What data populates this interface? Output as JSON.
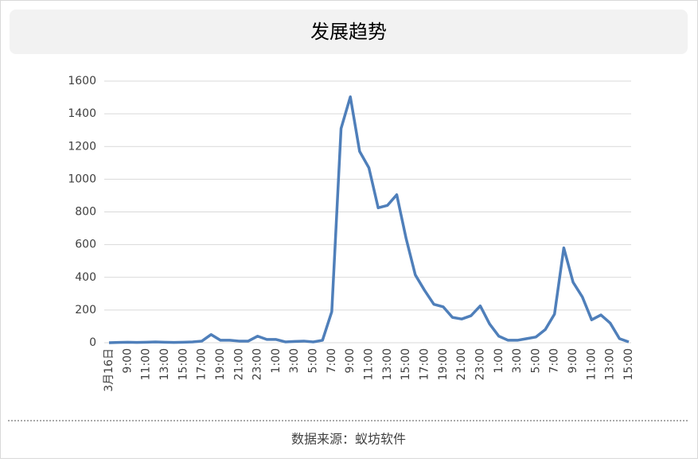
{
  "chart_data": {
    "type": "line",
    "title": "发展趋势",
    "source": "数据来源：蚁坊软件",
    "categories": [
      "3月16日",
      null,
      "9:00",
      null,
      "11:00",
      null,
      "13:00",
      null,
      "15:00",
      null,
      "17:00",
      null,
      "19:00",
      null,
      "21:00",
      null,
      "23:00",
      null,
      "1:00",
      null,
      "3:00",
      null,
      "5:00",
      null,
      "7:00",
      null,
      "9:00",
      null,
      "11:00",
      null,
      "13:00",
      null,
      "15:00",
      null,
      "17:00",
      null,
      "19:00",
      null,
      "21:00",
      null,
      "23:00",
      null,
      "1:00",
      null,
      "3:00",
      null,
      "5:00",
      null,
      "7:00",
      null,
      "9:00",
      null,
      "11:00",
      null,
      "13:00",
      null,
      "15:00"
    ],
    "series": [
      {
        "color": "#4f7fba",
        "values": [
          0,
          2,
          3,
          2,
          3,
          5,
          3,
          2,
          3,
          5,
          10,
          50,
          15,
          15,
          10,
          10,
          40,
          20,
          20,
          5,
          8,
          10,
          5,
          15,
          190,
          1310,
          1504,
          1170,
          1070,
          825,
          840,
          905,
          640,
          415,
          320,
          235,
          220,
          155,
          145,
          165,
          225,
          115,
          40,
          15,
          15,
          25,
          35,
          80,
          175,
          580,
          370,
          280,
          140,
          170,
          120,
          25,
          5
        ]
      }
    ],
    "ylim": [
      0,
      1600
    ],
    "yticks": [
      0,
      200,
      400,
      600,
      800,
      1000,
      1200,
      1400,
      1600
    ],
    "grid": true
  }
}
